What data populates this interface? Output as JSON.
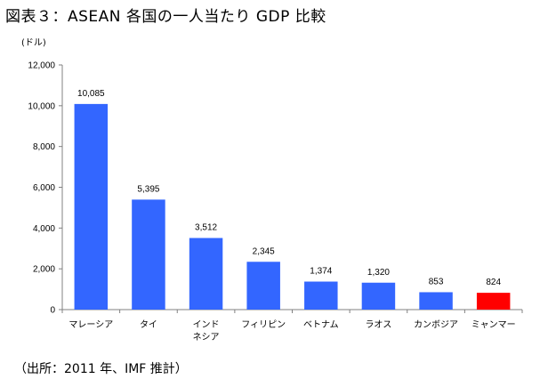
{
  "title": "図表３：ASEAN 各国の一人当たり GDP 比較",
  "source": "（出所：2011 年、IMF 推計）",
  "colors": {
    "bar": "#3366ff",
    "highlight": "#ff0000",
    "axis": "#808080"
  },
  "chart_data": {
    "type": "bar",
    "title": "",
    "ylabel": "(ドル)",
    "ylim": [
      0,
      12000
    ],
    "yticks": [
      0,
      2000,
      4000,
      6000,
      8000,
      10000,
      12000
    ],
    "ytick_labels": [
      "0",
      "2,000",
      "4,000",
      "6,000",
      "8,000",
      "10,000",
      "12,000"
    ],
    "grid": false,
    "categories": [
      [
        "マレーシア"
      ],
      [
        "タイ"
      ],
      [
        "インド",
        "ネシア"
      ],
      [
        "フィリピン"
      ],
      [
        "ベトナム"
      ],
      [
        "ラオス"
      ],
      [
        "カンボジア"
      ],
      [
        "ミャンマー"
      ]
    ],
    "values": [
      10085,
      5395,
      3512,
      2345,
      1374,
      1320,
      853,
      824
    ],
    "value_labels": [
      "10,085",
      "5,395",
      "3,512",
      "2,345",
      "1,374",
      "1,320",
      "853",
      "824"
    ],
    "highlight_index": 7
  }
}
